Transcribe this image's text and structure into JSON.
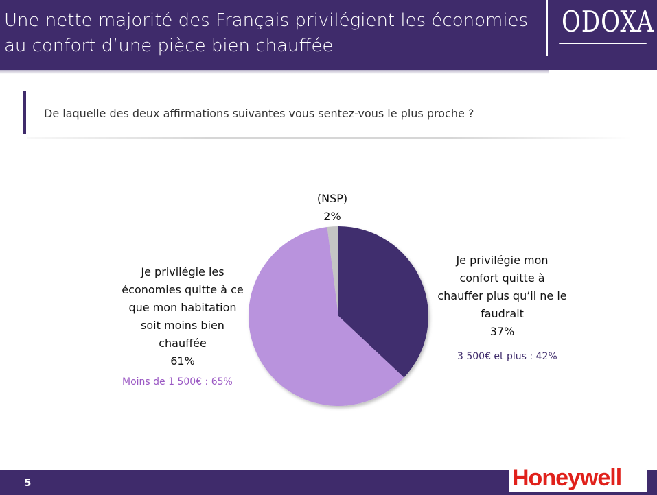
{
  "header": {
    "title": "Une nette majorité des Français privilégient les économies au confort d’une pièce bien chauffée",
    "logo_text": "ODOXA"
  },
  "question": "De laquelle des deux affirmations suivantes vous sentez-vous le plus proche ?",
  "chart_data": {
    "type": "pie",
    "slices": [
      {
        "label": "Je privilégie mon confort quitte à chauffer plus qu’il ne le faudrait",
        "value": 37,
        "value_label": "37%",
        "color": "#3f2d6e"
      },
      {
        "label": "Je privilégie les économies quitte à ce que mon habitation soit moins bien chauffée",
        "value": 61,
        "value_label": "61%",
        "color": "#b993dd"
      },
      {
        "label": "(NSP)",
        "value": 2,
        "value_label": "2%",
        "color": "#c4c4c4"
      }
    ],
    "annotations": {
      "economies": "Moins de 1 500€ : 65%",
      "confort": "3 500€ et plus : 42%"
    }
  },
  "footer": {
    "page_number": "5",
    "sponsor": "Honeywell"
  }
}
